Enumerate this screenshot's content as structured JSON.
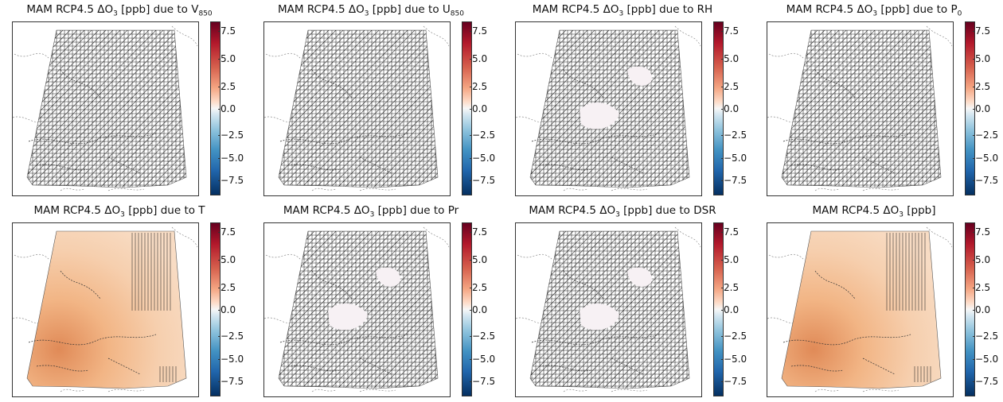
{
  "panels": [
    {
      "title_pre": "MAM RCP4.5 ΔO",
      "title_sub": "3",
      "title_post": " [ppb] due to V",
      "title_sub2": "850",
      "fill": "none",
      "hatch": "dense"
    },
    {
      "title_pre": "MAM RCP4.5 ΔO",
      "title_sub": "3",
      "title_post": " [ppb] due to U",
      "title_sub2": "850",
      "fill": "none",
      "hatch": "dense"
    },
    {
      "title_pre": "MAM RCP4.5 ΔO",
      "title_sub": "3",
      "title_post": " [ppb] due to RH",
      "title_sub2": "",
      "fill": "none",
      "hatch": "dense-patchy"
    },
    {
      "title_pre": "MAM RCP4.5 ΔO",
      "title_sub": "3",
      "title_post": " [ppb] due to P",
      "title_sub2": "0",
      "fill": "none",
      "hatch": "dense"
    },
    {
      "title_pre": "MAM RCP4.5 ΔO",
      "title_sub": "3",
      "title_post": " [ppb] due to T",
      "title_sub2": "",
      "fill": "orange",
      "hatch": "sparse"
    },
    {
      "title_pre": "MAM RCP4.5 ΔO",
      "title_sub": "3",
      "title_post": " [ppb] due to Pr",
      "title_sub2": "",
      "fill": "none",
      "hatch": "dense-patchy"
    },
    {
      "title_pre": "MAM RCP4.5 ΔO",
      "title_sub": "3",
      "title_post": " [ppb] due to DSR",
      "title_sub2": "",
      "fill": "none",
      "hatch": "dense-patchy"
    },
    {
      "title_pre": "MAM RCP4.5 ΔO",
      "title_sub": "3",
      "title_post": " [ppb]",
      "title_sub2": "",
      "fill": "orange",
      "hatch": "sparse"
    }
  ],
  "colorbar": {
    "ticks": [
      "7.5",
      "5.0",
      "2.5",
      "0.0",
      "−2.5",
      "−5.0",
      "−7.5"
    ],
    "range": [
      -9,
      9
    ],
    "colors": {
      "max": "#67001f",
      "mid": "#f7f7f7",
      "min": "#053061"
    }
  }
}
